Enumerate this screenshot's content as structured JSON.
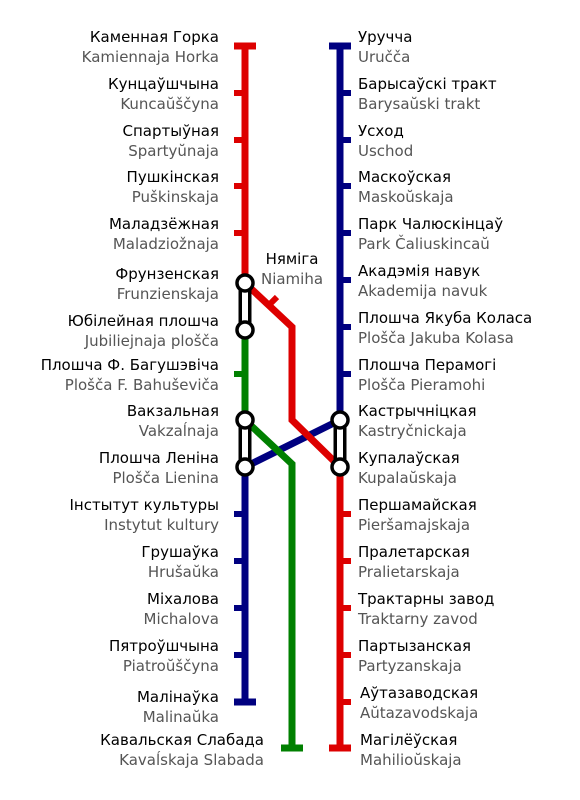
{
  "colors": {
    "red_line": "#dd0000",
    "blue_line": "#000080",
    "green_line": "#008000",
    "primary_text": "#000000",
    "secondary_text": "#555555"
  },
  "stations": {
    "kamiennaja_horka": {
      "be": "Каменная Горка",
      "lat": "Kamiennaja Horka"
    },
    "kuncauscyna": {
      "be": "Кунцаўшчына",
      "lat": "Kuncaŭščyna"
    },
    "spartyunaja": {
      "be": "Спартыўная",
      "lat": "Spartyŭnaja"
    },
    "puskinskaja": {
      "be": "Пушкінская",
      "lat": "Puškinskaja"
    },
    "maladziaznaja": {
      "be": "Маладзёжная",
      "lat": "Maladziožnaja"
    },
    "frunzienskaja": {
      "be": "Фрунзенская",
      "lat": "Frunzienskaja"
    },
    "jubiliejnaja": {
      "be": "Юбілейная плошча",
      "lat": "Jubiliejnaja plošča"
    },
    "bahusevica": {
      "be": "Плошча Ф. Багушэвіча",
      "lat": "Plošča F. Bahuševiča"
    },
    "vakzalnaja": {
      "be": "Вакзальная",
      "lat": "Vakzaĺnaja"
    },
    "lienina": {
      "be": "Плошча Леніна",
      "lat": "Plošča Lienina"
    },
    "instytut": {
      "be": "Інстытут культуры",
      "lat": "Instytut kultury"
    },
    "hrusauka": {
      "be": "Грушаўка",
      "lat": "Hrušaŭka"
    },
    "michalova": {
      "be": "Міхалова",
      "lat": "Michalova"
    },
    "piatrouscyna": {
      "be": "Пятроўшчына",
      "lat": "Piatroŭščyna"
    },
    "malinauka": {
      "be": "Малінаўка",
      "lat": "Malinaŭka"
    },
    "kavalskaja_slabada": {
      "be": "Кавальская Слабада",
      "lat": "Kavaĺskaja Slabada"
    },
    "niamiha": {
      "be": "Няміга",
      "lat": "Niamiha"
    },
    "urucca": {
      "be": "Уручча",
      "lat": "Uručča"
    },
    "barysauski_trakt": {
      "be": "Барысаўскі тракт",
      "lat": "Barysaŭski trakt"
    },
    "uschod": {
      "be": "Усход",
      "lat": "Uschod"
    },
    "maskouskaja": {
      "be": "Маскоўская",
      "lat": "Maskoŭskaja"
    },
    "park_caliuskincau": {
      "be": "Парк Чалюскінцаў",
      "lat": "Park Čaliuskincaŭ"
    },
    "akademija_navuk": {
      "be": "Акадэмія навук",
      "lat": "Akademija navuk"
    },
    "jakuba_kolasa": {
      "be": "Плошча Якуба Коласа",
      "lat": "Plošča Jakuba Kolasa"
    },
    "pieramohi": {
      "be": "Плошча Перамогі",
      "lat": "Plošča Pieramohi"
    },
    "kastrycnickaja": {
      "be": "Кастрычніцкая",
      "lat": "Kastryčnickaja"
    },
    "kupalauskaja": {
      "be": "Купалаўская",
      "lat": "Kupalaŭskaja"
    },
    "piersamajskaja": {
      "be": "Першамайская",
      "lat": "Pieršamajskaja"
    },
    "pralietarskaja": {
      "be": "Пралетарская",
      "lat": "Pralietarskaja"
    },
    "traktarny_zavod": {
      "be": "Трактарны завод",
      "lat": "Traktarny zavod"
    },
    "partyzanskaja": {
      "be": "Партызанская",
      "lat": "Partyzanskaja"
    },
    "autazavodskaja": {
      "be": "Аўтазаводская",
      "lat": "Aŭtazavodskaja"
    },
    "mahiliouskaja": {
      "be": "Магілёўская",
      "lat": "Mahilioŭskaja"
    }
  }
}
